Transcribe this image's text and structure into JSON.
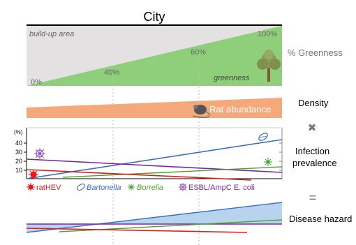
{
  "city": {
    "title": "City",
    "build_up_label": "build-up area",
    "greenness_label": "greenness",
    "pct_labels": [
      "0%",
      "40%",
      "60%",
      "100%"
    ],
    "greenness_pct_label": "% Greenness"
  },
  "density": {
    "rat_label": "Rat abundance",
    "side_label": "Density"
  },
  "operators": {
    "multiply": "✖",
    "equals": "="
  },
  "infection": {
    "yunit": "(%)",
    "yticks": [
      "40",
      "30",
      "20",
      "10"
    ],
    "side_label_1": "Infection",
    "side_label_2": "prevalence",
    "legend": [
      {
        "name": "ratHEV",
        "color": "#e8191b"
      },
      {
        "name": "Bartonella",
        "color": "#3a6fc4"
      },
      {
        "name": "Borrelia",
        "color": "#4aa42e"
      },
      {
        "name": "ESBL/AmpC E. coli",
        "color": "#7a2aa0"
      }
    ]
  },
  "hazard": {
    "side_label": "Disease hazard"
  },
  "colors": {
    "green": "#8fcf7a",
    "grey": "#e3e1e1",
    "orange": "#f5a97a",
    "blue_fill": "#b8d3ee"
  }
}
